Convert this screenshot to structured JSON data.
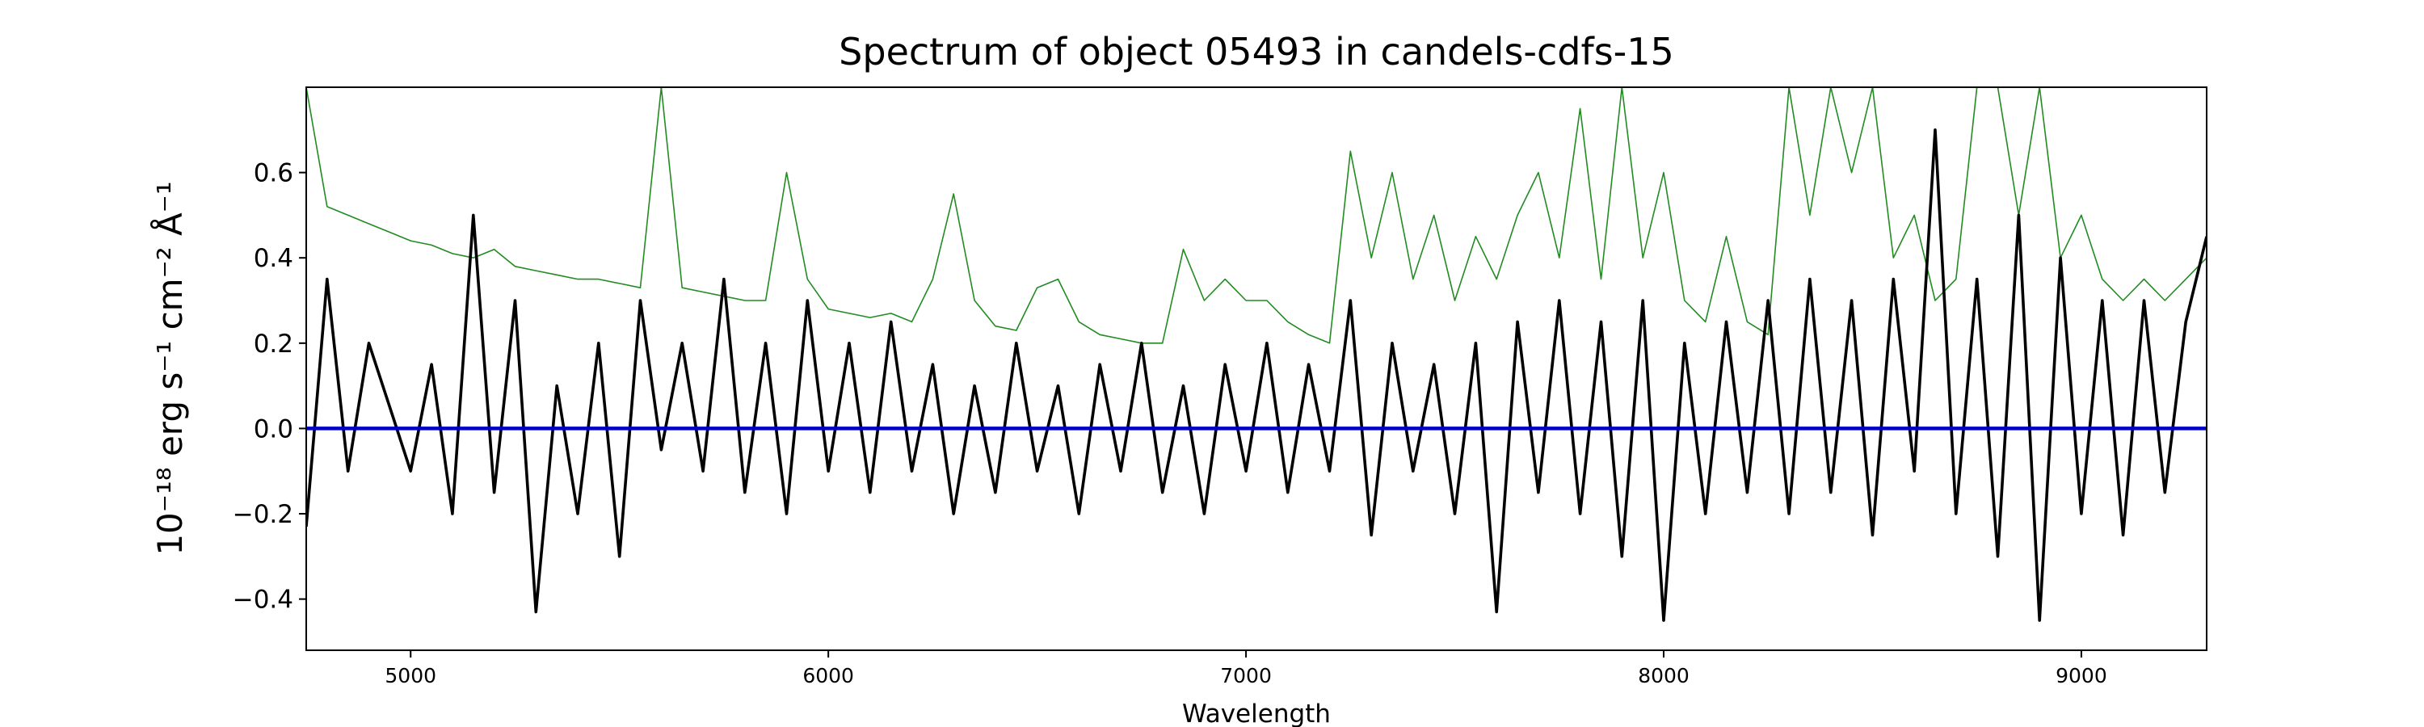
{
  "chart_data": {
    "type": "line",
    "title": "Spectrum of object 05493 in candels-cdfs-15",
    "xlabel": "Wavelength",
    "ylabel": "10⁻¹⁸ erg s⁻¹ cm⁻² Å⁻¹",
    "xlim": [
      4750,
      9300
    ],
    "ylim": [
      -0.52,
      0.8
    ],
    "xticks": [
      5000,
      6000,
      7000,
      8000,
      9000
    ],
    "yticks": [
      {
        "value": -0.4,
        "label": "−0.4"
      },
      {
        "value": -0.2,
        "label": "−0.2"
      },
      {
        "value": 0,
        "label": "0.0"
      },
      0.2,
      0.4,
      0.6
    ],
    "x": [
      4750,
      4800,
      4850,
      4900,
      4950,
      5000,
      5050,
      5100,
      5150,
      5200,
      5250,
      5300,
      5350,
      5400,
      5450,
      5500,
      5550,
      5600,
      5650,
      5700,
      5750,
      5800,
      5850,
      5900,
      5950,
      6000,
      6050,
      6100,
      6150,
      6200,
      6250,
      6300,
      6350,
      6400,
      6450,
      6500,
      6550,
      6600,
      6650,
      6700,
      6750,
      6800,
      6850,
      6900,
      6950,
      7000,
      7050,
      7100,
      7150,
      7200,
      7250,
      7300,
      7350,
      7400,
      7450,
      7500,
      7550,
      7600,
      7650,
      7700,
      7750,
      7800,
      7850,
      7900,
      7950,
      8000,
      8050,
      8100,
      8150,
      8200,
      8250,
      8300,
      8350,
      8400,
      8450,
      8500,
      8550,
      8600,
      8650,
      8700,
      8750,
      8800,
      8850,
      8900,
      8950,
      9000,
      9050,
      9100,
      9150,
      9200,
      9250,
      9300
    ],
    "series": [
      {
        "color": "#228b22",
        "width": 1.6,
        "values": [
          0.8,
          0.52,
          0.5,
          0.48,
          0.46,
          0.44,
          0.43,
          0.41,
          0.4,
          0.42,
          0.38,
          0.37,
          0.36,
          0.35,
          0.35,
          0.34,
          0.33,
          0.8,
          0.33,
          0.32,
          0.31,
          0.3,
          0.3,
          0.6,
          0.35,
          0.28,
          0.27,
          0.26,
          0.27,
          0.25,
          0.35,
          0.55,
          0.3,
          0.24,
          0.23,
          0.33,
          0.35,
          0.25,
          0.22,
          0.21,
          0.2,
          0.2,
          0.42,
          0.3,
          0.35,
          0.3,
          0.3,
          0.25,
          0.22,
          0.2,
          0.65,
          0.4,
          0.6,
          0.35,
          0.5,
          0.3,
          0.45,
          0.35,
          0.5,
          0.6,
          0.4,
          0.75,
          0.35,
          0.8,
          0.4,
          0.6,
          0.3,
          0.25,
          0.45,
          0.25,
          0.22,
          0.8,
          0.5,
          0.8,
          0.6,
          0.8,
          0.4,
          0.5,
          0.3,
          0.35,
          0.8,
          0.8,
          0.5,
          0.8,
          0.4,
          0.5,
          0.35,
          0.3,
          0.35,
          0.3,
          0.35,
          0.4
        ]
      },
      {
        "color": "#000000",
        "width": 3.6,
        "values": [
          -0.23,
          0.35,
          -0.1,
          0.2,
          0.05,
          -0.1,
          0.15,
          -0.2,
          0.5,
          -0.15,
          0.3,
          -0.43,
          0.1,
          -0.2,
          0.2,
          -0.3,
          0.3,
          -0.05,
          0.2,
          -0.1,
          0.35,
          -0.15,
          0.2,
          -0.2,
          0.3,
          -0.1,
          0.2,
          -0.15,
          0.25,
          -0.1,
          0.15,
          -0.2,
          0.1,
          -0.15,
          0.2,
          -0.1,
          0.1,
          -0.2,
          0.15,
          -0.1,
          0.2,
          -0.15,
          0.1,
          -0.2,
          0.15,
          -0.1,
          0.2,
          -0.15,
          0.15,
          -0.1,
          0.3,
          -0.25,
          0.2,
          -0.1,
          0.15,
          -0.2,
          0.2,
          -0.43,
          0.25,
          -0.15,
          0.3,
          -0.2,
          0.25,
          -0.3,
          0.3,
          -0.45,
          0.2,
          -0.2,
          0.25,
          -0.15,
          0.3,
          -0.2,
          0.35,
          -0.15,
          0.3,
          -0.25,
          0.35,
          -0.1,
          0.7,
          -0.2,
          0.35,
          -0.3,
          0.5,
          -0.45,
          0.4,
          -0.2,
          0.3,
          -0.25,
          0.3,
          -0.15,
          0.25,
          0.45
        ]
      },
      {
        "color": "#0000cd",
        "width": 4.5,
        "x": [
          4750,
          9300
        ],
        "values": [
          0,
          0
        ]
      }
    ]
  }
}
